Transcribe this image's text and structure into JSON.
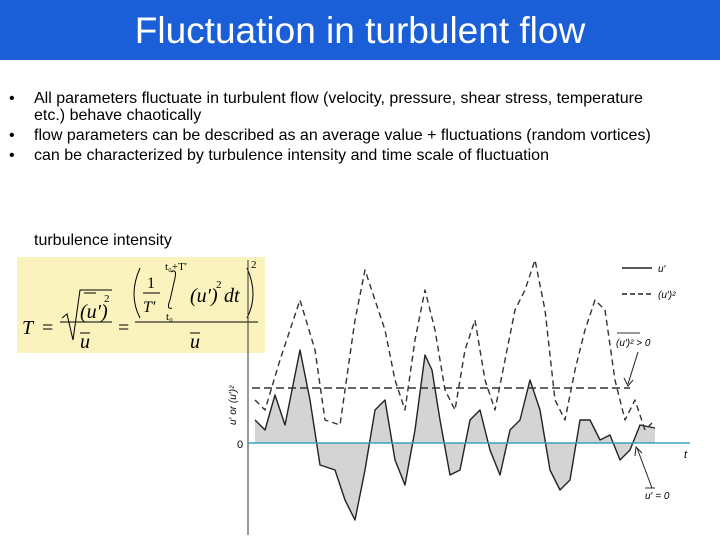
{
  "header": {
    "title": "Fluctuation in turbulent flow"
  },
  "bullets": [
    "All parameters fluctuate in turbulent flow (velocity, pressure, shear stress, temperature etc.) behave chaotically",
    "flow parameters can be described as an average value + fluctuations (random vortices)",
    "can be characterized by turbulence intensity and time scale of fluctuation"
  ],
  "subheading": "turbulence intensity",
  "formula": {
    "lhs": "T",
    "eq1": "=",
    "sqrt_term": "(u′)",
    "power": "2",
    "mean1": "u",
    "eq2": "=",
    "one": "1",
    "period": "T′",
    "upper": "t₀+T′",
    "lower": "t₀",
    "integrand": "(u′)",
    "power_inner": "2",
    "dt": "dt",
    "power_outer": "2",
    "mean2": "u"
  },
  "figure": {
    "legend": [
      "u′",
      "(u′)²"
    ],
    "positive_note": "(u′)² > 0",
    "zero_note": "u′ = 0",
    "y_axis_label": "u′ or (u′)²",
    "origin": "0",
    "x_axis_label": "t"
  }
}
